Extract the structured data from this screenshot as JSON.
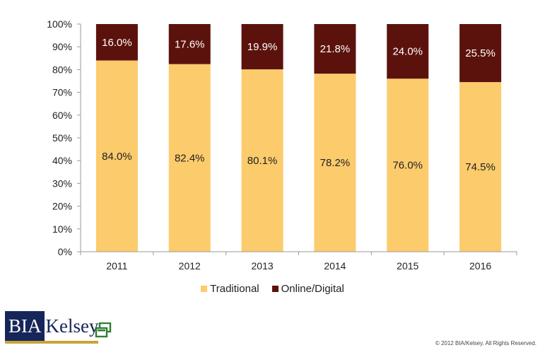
{
  "chart_data": {
    "type": "bar",
    "stacked": true,
    "categories": [
      "2011",
      "2012",
      "2013",
      "2014",
      "2015",
      "2016"
    ],
    "series": [
      {
        "name": "Traditional",
        "values": [
          84.0,
          82.4,
          80.1,
          78.2,
          76.0,
          74.5
        ],
        "labels": [
          "84.0%",
          "82.4%",
          "80.1%",
          "78.2%",
          "76.0%",
          "74.5%"
        ],
        "color": "#fccb6c",
        "label_color": "#222222"
      },
      {
        "name": "Online/Digital",
        "values": [
          16.0,
          17.6,
          19.9,
          21.8,
          24.0,
          25.5
        ],
        "labels": [
          "16.0%",
          "17.6%",
          "19.9%",
          "21.8%",
          "24.0%",
          "25.5%"
        ],
        "color": "#5c120c",
        "label_color": "#ffffff"
      }
    ],
    "ylim": [
      0,
      100
    ],
    "yticks": [
      0,
      10,
      20,
      30,
      40,
      50,
      60,
      70,
      80,
      90,
      100
    ],
    "ytick_labels": [
      "0%",
      "10%",
      "20%",
      "30%",
      "40%",
      "50%",
      "60%",
      "70%",
      "80%",
      "90%",
      "100%"
    ],
    "grid": false,
    "legend_position": "bottom"
  },
  "legend": {
    "items": [
      {
        "label": "Traditional",
        "color": "#fccb6c"
      },
      {
        "label": "Online/Digital",
        "color": "#5c120c"
      }
    ]
  },
  "brand": {
    "logo_part1": "BIA",
    "logo_part2": "Kelsey",
    "logo_mark_icon": "windows-mark-icon",
    "logo_mark_color": "#2e7d32"
  },
  "footer": {
    "copyright": "© 2012 BIA/Kelsey.  All Rights Reserved."
  }
}
